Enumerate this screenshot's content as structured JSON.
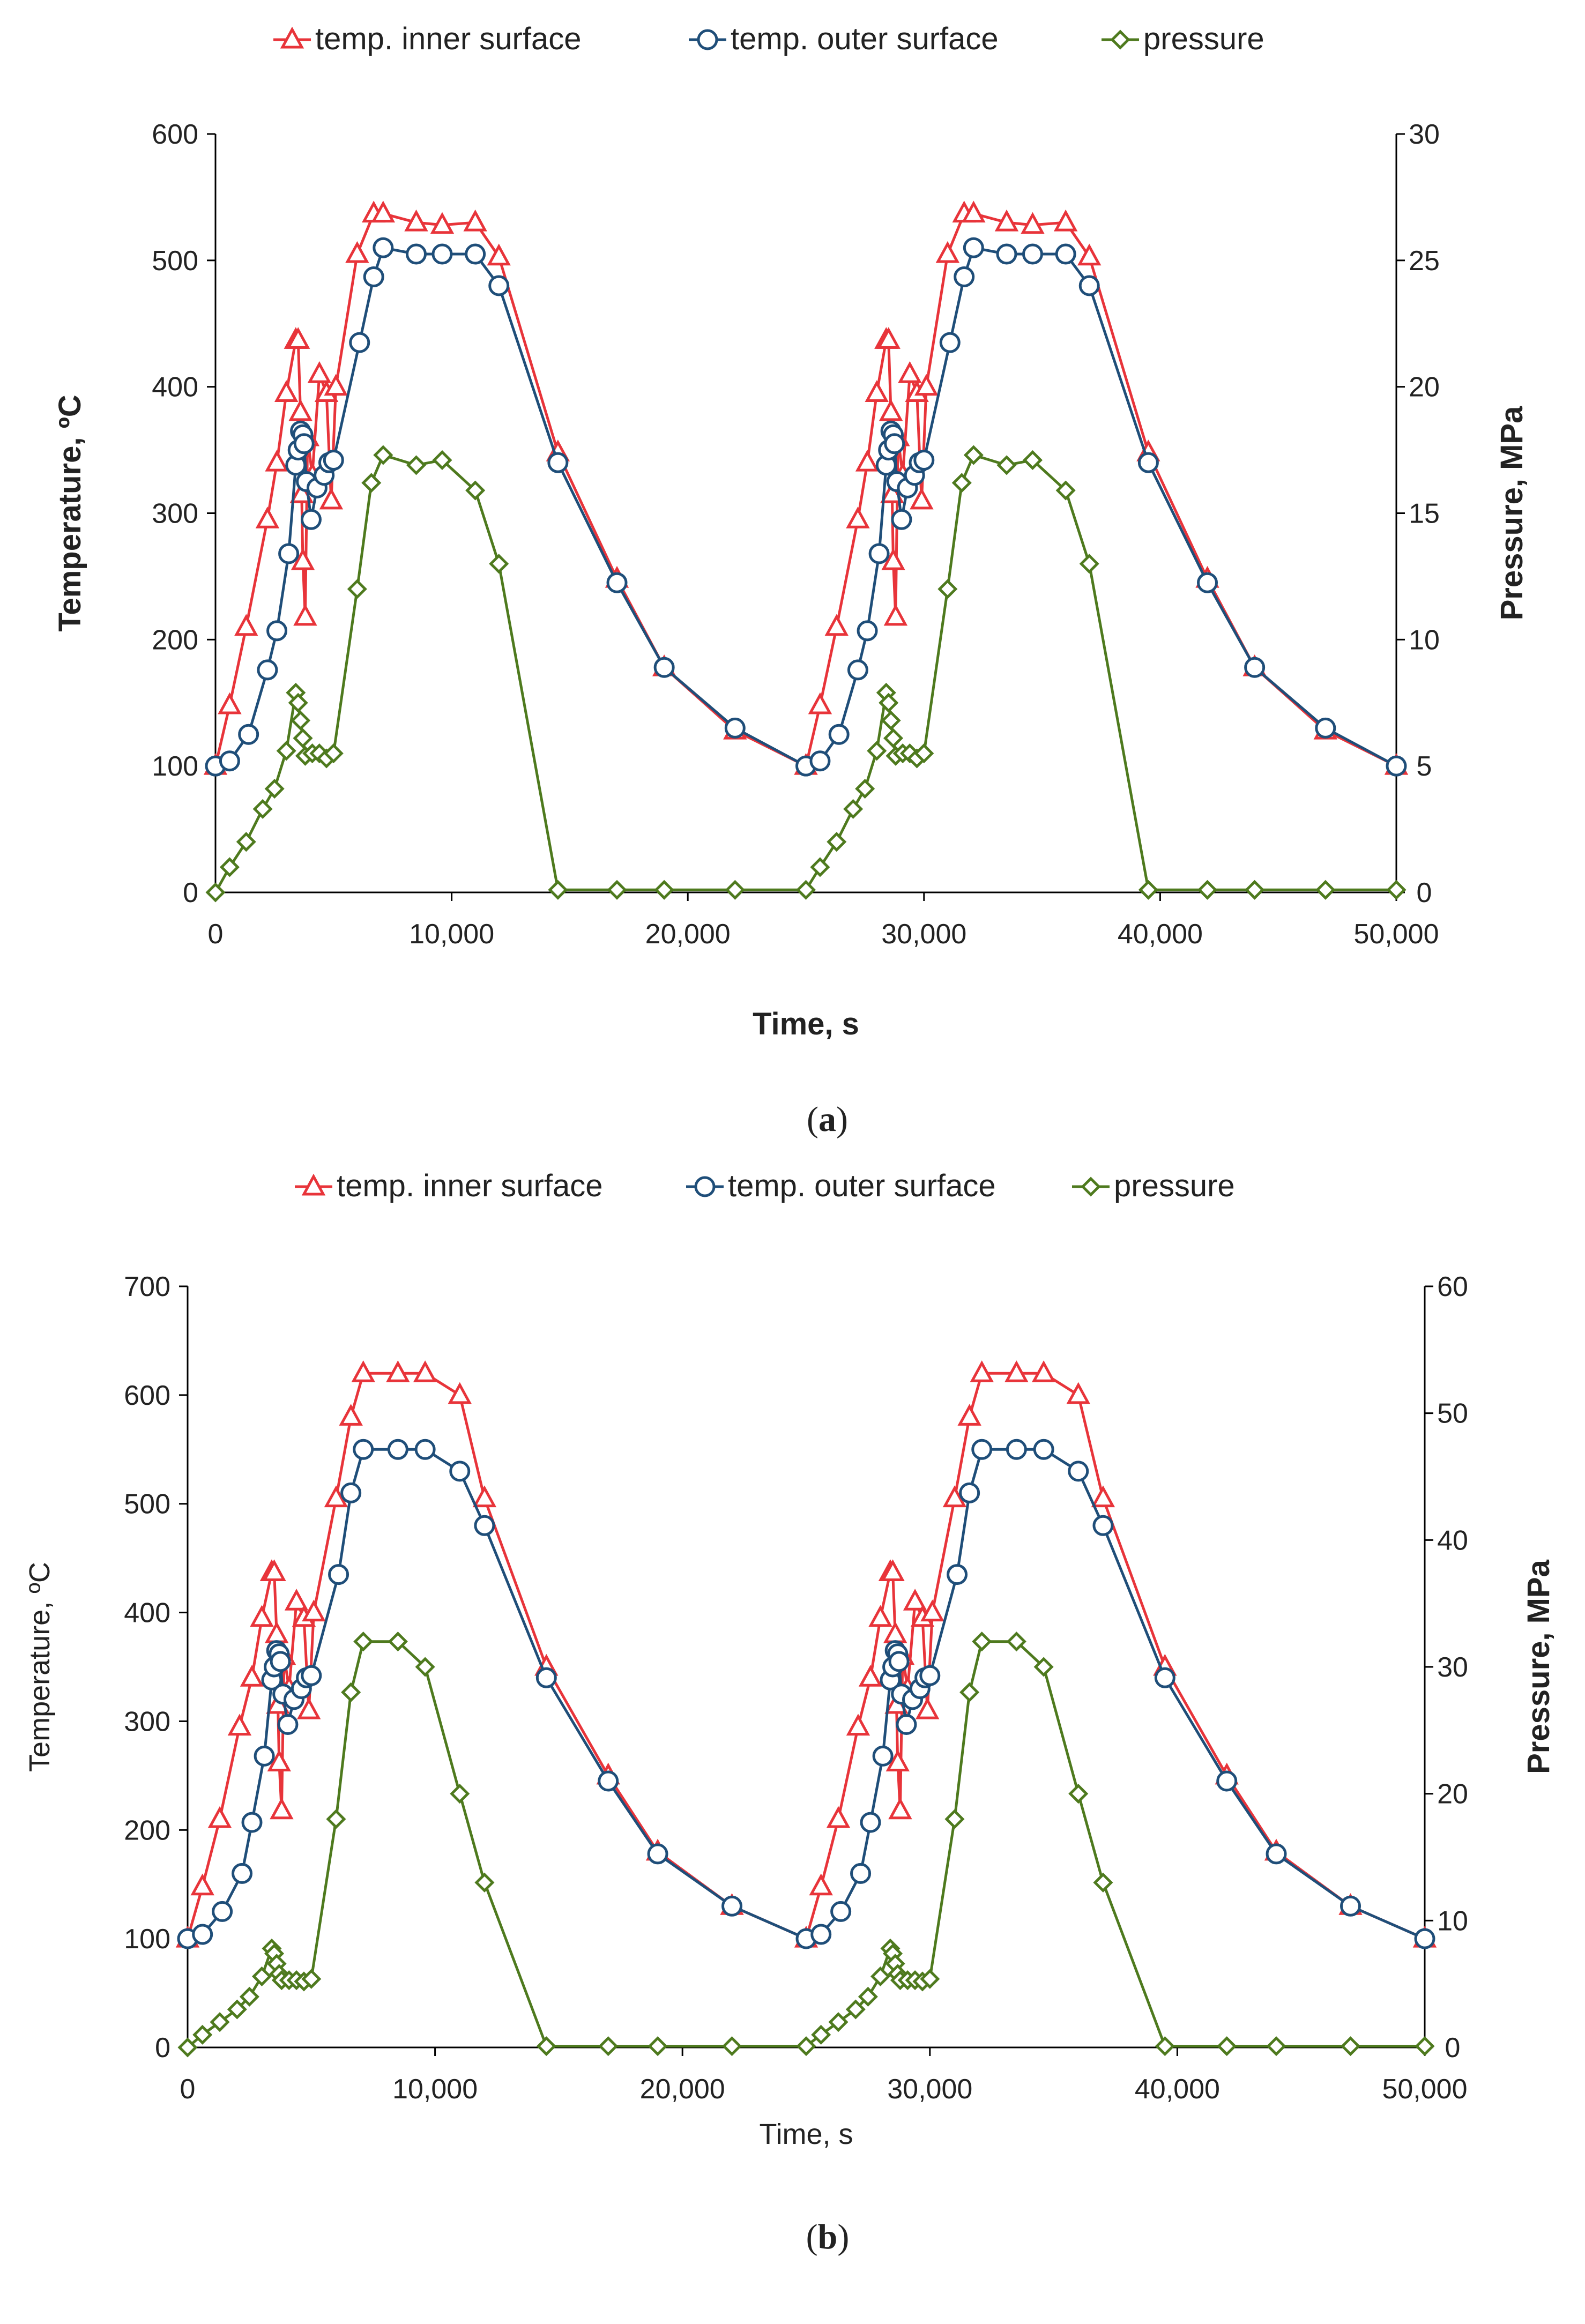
{
  "colors": {
    "inner": "#e8343a",
    "outer": "#1f4e79",
    "pressure": "#4e7a1e",
    "axis": "#000000"
  },
  "chart_data": [
    {
      "type": "line",
      "caption": "(a)",
      "xlabel": "Time, s",
      "ylabel_left": "Temperature, ºC",
      "ylabel_right": "Pressure, MPa",
      "xlim": [
        0,
        50000
      ],
      "ylim_left": [
        0,
        600
      ],
      "ylim_right": [
        0,
        30
      ],
      "xticks": [
        0,
        10000,
        20000,
        30000,
        40000,
        50000
      ],
      "xtick_labels": [
        "0",
        "10,000",
        "20,000",
        "30,000",
        "40,000",
        "50,000"
      ],
      "yticks_left": [
        0,
        100,
        200,
        300,
        400,
        500,
        600
      ],
      "ytick_labels_left": [
        "0",
        "100",
        "200",
        "300",
        "400",
        "500",
        "600"
      ],
      "yticks_right": [
        0,
        5,
        10,
        15,
        20,
        25,
        30
      ],
      "ytick_labels_right": [
        "0",
        "5",
        "10",
        "15",
        "20",
        "25",
        "30"
      ],
      "legend_position": "top",
      "series": [
        {
          "name": "temp. inner surface",
          "key": "inner",
          "axis": "left",
          "marker": "triangle",
          "x": [
            0,
            600,
            1300,
            2200,
            2600,
            3000,
            3400,
            3500,
            3600,
            3650,
            3700,
            3800,
            3900,
            4100,
            4400,
            4700,
            4900,
            5100,
            6000,
            6700,
            7100,
            8500,
            9600,
            11000,
            12000,
            14500,
            17000,
            19000,
            22000,
            25000,
            25600,
            26300,
            27200,
            27600,
            28000,
            28400,
            28500,
            28600,
            28650,
            28700,
            28800,
            28900,
            29100,
            29400,
            29700,
            29900,
            30100,
            31000,
            31700,
            32100,
            33500,
            34600,
            36000,
            37000,
            39500,
            42000,
            44000,
            47000,
            50000
          ],
          "values": [
            100,
            148,
            210,
            295,
            340,
            395,
            437,
            437,
            380,
            315,
            262,
            218,
            360,
            330,
            410,
            395,
            310,
            400,
            505,
            537,
            537,
            530,
            528,
            530,
            503,
            348,
            248,
            178,
            128,
            100,
            148,
            210,
            295,
            340,
            395,
            437,
            437,
            380,
            315,
            262,
            218,
            360,
            330,
            410,
            395,
            310,
            400,
            505,
            537,
            537,
            530,
            528,
            530,
            503,
            348,
            248,
            178,
            128,
            100
          ]
        },
        {
          "name": "temp. outer surface",
          "key": "outer",
          "axis": "left",
          "marker": "circle",
          "x": [
            0,
            600,
            1400,
            2200,
            2600,
            3100,
            3400,
            3500,
            3600,
            3700,
            3750,
            3850,
            4050,
            4300,
            4600,
            4800,
            5000,
            6100,
            6700,
            7100,
            8500,
            9600,
            11000,
            12000,
            14500,
            17000,
            19000,
            22000,
            25000,
            25600,
            26400,
            27200,
            27600,
            28100,
            28400,
            28500,
            28600,
            28700,
            28750,
            28850,
            29050,
            29300,
            29600,
            29800,
            30000,
            31100,
            31700,
            32100,
            33500,
            34600,
            36000,
            37000,
            39500,
            42000,
            44000,
            47000,
            50000
          ],
          "values": [
            100,
            104,
            125,
            176,
            207,
            268,
            338,
            350,
            365,
            362,
            355,
            325,
            295,
            320,
            330,
            340,
            342,
            435,
            487,
            510,
            505,
            505,
            505,
            480,
            340,
            245,
            178,
            130,
            100,
            104,
            125,
            176,
            207,
            268,
            338,
            350,
            365,
            362,
            355,
            325,
            295,
            320,
            330,
            340,
            342,
            435,
            487,
            510,
            505,
            505,
            505,
            480,
            340,
            245,
            178,
            130,
            100
          ]
        },
        {
          "name": "pressure",
          "key": "pressure",
          "axis": "right",
          "marker": "diamond",
          "x": [
            0,
            600,
            1300,
            2000,
            2500,
            3000,
            3400,
            3500,
            3600,
            3700,
            3800,
            4100,
            4400,
            4700,
            5000,
            6000,
            6600,
            7100,
            8500,
            9600,
            11000,
            12000,
            14500,
            17000,
            19000,
            22000,
            25000,
            25600,
            26300,
            27000,
            27500,
            28000,
            28400,
            28500,
            28600,
            28700,
            28800,
            29100,
            29400,
            29700,
            30000,
            31000,
            31600,
            32100,
            33500,
            34600,
            36000,
            37000,
            39500,
            42000,
            44000,
            47000,
            50000
          ],
          "values": [
            0,
            1,
            2,
            3.3,
            4.1,
            5.6,
            7.9,
            7.5,
            6.8,
            6.1,
            5.4,
            5.5,
            5.5,
            5.3,
            5.5,
            12,
            16.2,
            17.3,
            16.9,
            17.1,
            15.9,
            13,
            0.1,
            0.1,
            0.1,
            0.1,
            0.1,
            1,
            2,
            3.3,
            4.1,
            5.6,
            7.9,
            7.5,
            6.8,
            6.1,
            5.4,
            5.5,
            5.5,
            5.3,
            5.5,
            12,
            16.2,
            17.3,
            16.9,
            17.1,
            15.9,
            13,
            0.1,
            0.1,
            0.1,
            0.1,
            0.1
          ]
        }
      ]
    },
    {
      "type": "line",
      "caption": "(b)",
      "xlabel": "Time, s",
      "ylabel_left": "Temperature, ºC",
      "ylabel_right": "Pressure, MPa",
      "xlim": [
        0,
        50000
      ],
      "ylim_left": [
        0,
        700
      ],
      "ylim_right": [
        0,
        60
      ],
      "xticks": [
        0,
        10000,
        20000,
        30000,
        40000,
        50000
      ],
      "xtick_labels": [
        "0",
        "10,000",
        "20,000",
        "30,000",
        "40,000",
        "50,000"
      ],
      "yticks_left": [
        0,
        100,
        200,
        300,
        400,
        500,
        600,
        700
      ],
      "ytick_labels_left": [
        "0",
        "100",
        "200",
        "300",
        "400",
        "500",
        "600",
        "700"
      ],
      "yticks_right": [
        0,
        10,
        20,
        30,
        40,
        50,
        60
      ],
      "ytick_labels_right": [
        "0",
        "10",
        "20",
        "30",
        "40",
        "50",
        "60"
      ],
      "legend_position": "top",
      "series": [
        {
          "name": "temp. inner surface",
          "key": "inner",
          "axis": "left",
          "marker": "triangle",
          "x": [
            0,
            600,
            1300,
            2100,
            2600,
            3000,
            3400,
            3500,
            3600,
            3650,
            3700,
            3800,
            3900,
            4100,
            4400,
            4700,
            4900,
            5100,
            6000,
            6600,
            7100,
            8500,
            9600,
            11000,
            12000,
            14500,
            17000,
            19000,
            22000,
            25000,
            25600,
            26300,
            27100,
            27600,
            28000,
            28400,
            28500,
            28600,
            28650,
            28700,
            28800,
            28900,
            29100,
            29400,
            29700,
            29900,
            30100,
            31000,
            31600,
            32100,
            33500,
            34600,
            36000,
            37000,
            39500,
            42000,
            44000,
            47000,
            50000
          ],
          "values": [
            100,
            148,
            210,
            295,
            340,
            395,
            437,
            437,
            380,
            315,
            262,
            218,
            360,
            330,
            410,
            395,
            310,
            400,
            505,
            580,
            620,
            620,
            620,
            600,
            505,
            350,
            250,
            180,
            130,
            100,
            148,
            210,
            295,
            340,
            395,
            437,
            437,
            380,
            315,
            262,
            218,
            360,
            330,
            410,
            395,
            310,
            400,
            505,
            580,
            620,
            620,
            620,
            600,
            505,
            350,
            250,
            180,
            130,
            100
          ]
        },
        {
          "name": "temp. outer surface",
          "key": "outer",
          "axis": "left",
          "marker": "circle",
          "x": [
            0,
            600,
            1400,
            2200,
            2600,
            3100,
            3400,
            3500,
            3600,
            3700,
            3750,
            3850,
            4050,
            4300,
            4600,
            4800,
            5000,
            6100,
            6600,
            7100,
            8500,
            9600,
            11000,
            12000,
            14500,
            17000,
            19000,
            22000,
            25000,
            25600,
            26400,
            27200,
            27600,
            28100,
            28400,
            28500,
            28600,
            28700,
            28750,
            28850,
            29050,
            29300,
            29600,
            29800,
            30000,
            31100,
            31600,
            32100,
            33500,
            34600,
            36000,
            37000,
            39500,
            42000,
            44000,
            47000,
            50000
          ],
          "values": [
            100,
            104,
            125,
            160,
            207,
            268,
            338,
            350,
            365,
            362,
            355,
            325,
            297,
            320,
            330,
            340,
            342,
            435,
            510,
            550,
            550,
            550,
            530,
            480,
            340,
            245,
            178,
            130,
            100,
            104,
            125,
            160,
            207,
            268,
            338,
            350,
            365,
            362,
            355,
            325,
            297,
            320,
            330,
            340,
            342,
            435,
            510,
            550,
            550,
            550,
            530,
            480,
            340,
            245,
            178,
            130,
            100
          ]
        },
        {
          "name": "pressure",
          "key": "pressure",
          "axis": "right",
          "marker": "diamond",
          "x": [
            0,
            600,
            1300,
            2000,
            2500,
            3000,
            3400,
            3500,
            3600,
            3700,
            3800,
            4100,
            4400,
            4700,
            5000,
            6000,
            6600,
            7100,
            8500,
            9600,
            11000,
            12000,
            14500,
            17000,
            19000,
            22000,
            25000,
            25600,
            26300,
            27000,
            27500,
            28000,
            28400,
            28500,
            28600,
            28700,
            28800,
            29100,
            29400,
            29700,
            30000,
            31000,
            31600,
            32100,
            33500,
            34600,
            36000,
            37000,
            39500,
            42000,
            44000,
            47000,
            50000
          ],
          "values": [
            0,
            1,
            2,
            3,
            4,
            5.6,
            7.8,
            7.4,
            6.6,
            5.8,
            5.3,
            5.3,
            5.3,
            5.2,
            5.4,
            18,
            28,
            32,
            32,
            30,
            20,
            13,
            0.1,
            0.1,
            0.1,
            0.1,
            0.1,
            1,
            2,
            3,
            4,
            5.6,
            7.8,
            7.4,
            6.6,
            5.8,
            5.3,
            5.3,
            5.3,
            5.2,
            5.4,
            18,
            28,
            32,
            32,
            30,
            20,
            13,
            0.1,
            0.1,
            0.1,
            0.1,
            0.1
          ]
        }
      ]
    }
  ]
}
